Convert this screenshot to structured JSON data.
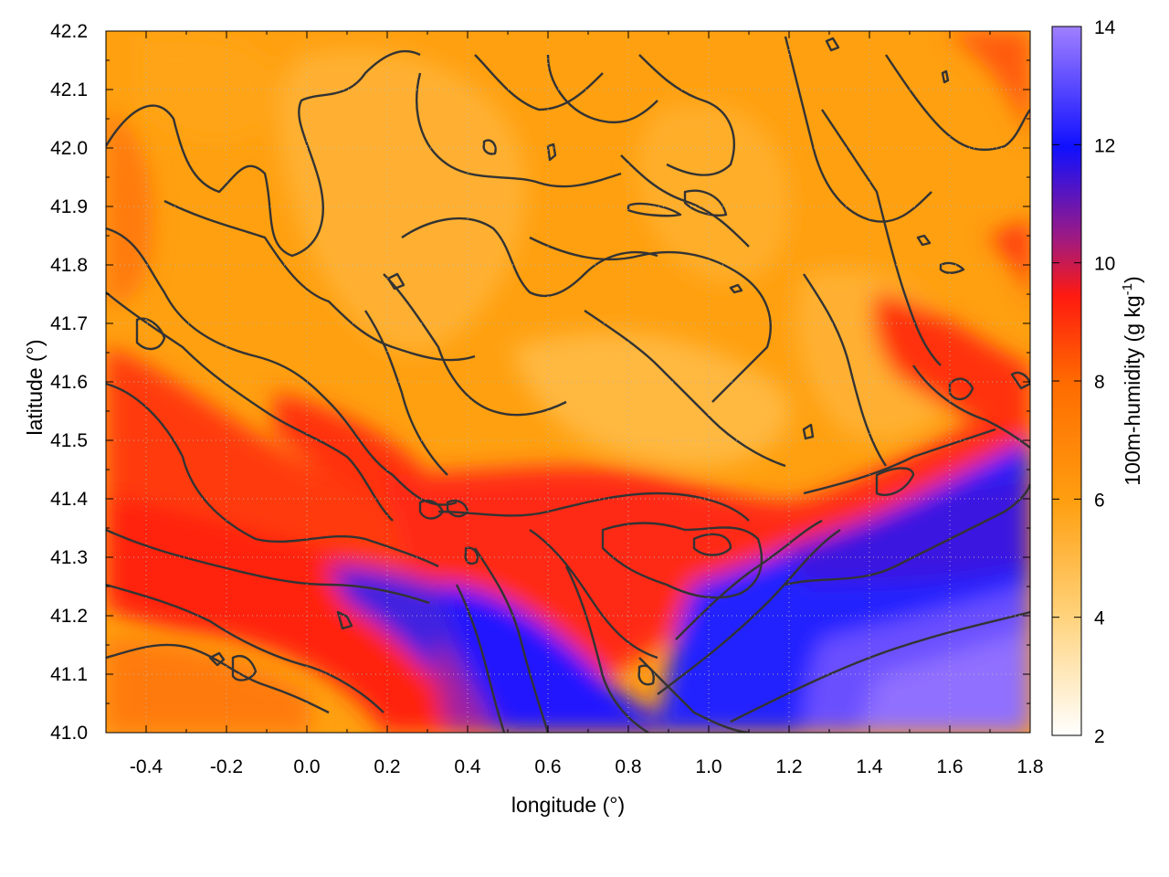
{
  "chart_data": {
    "type": "heatmap",
    "xlabel": "longitude (°)",
    "ylabel": "latitude (°)",
    "xlim": [
      -0.5,
      1.8
    ],
    "ylim": [
      41.0,
      42.2
    ],
    "x_ticks": [
      "-0.4",
      "-0.2",
      "0.0",
      "0.2",
      "0.4",
      "0.6",
      "0.8",
      "1.0",
      "1.2",
      "1.4",
      "1.6",
      "1.8"
    ],
    "y_ticks": [
      "41.0",
      "41.1",
      "41.2",
      "41.3",
      "41.4",
      "41.5",
      "41.6",
      "41.7",
      "41.8",
      "41.9",
      "42.0",
      "42.1",
      "42.2"
    ],
    "grid": true,
    "colorbar": {
      "label": "100m-humidity (g kg-1)",
      "range": [
        2,
        14
      ],
      "ticks": [
        "2",
        "4",
        "6",
        "8",
        "10",
        "12",
        "14"
      ],
      "palette": [
        "#ffffff",
        "#ffd27a",
        "#ff9f10",
        "#ff6a00",
        "#ff1a10",
        "#7a1aa0",
        "#1010ff",
        "#a080ff"
      ]
    },
    "field_description": "100m specific humidity; values around 5-6 g/kg over inland areas, 7-8 g/kg in the western lowlands and along the coast, 11-13 g/kg over the sea in the south-east",
    "contour_color": "#333333"
  },
  "colorbar_label": {
    "main": "100m-humidity (g kg",
    "sup": "-1",
    "end": ")"
  }
}
